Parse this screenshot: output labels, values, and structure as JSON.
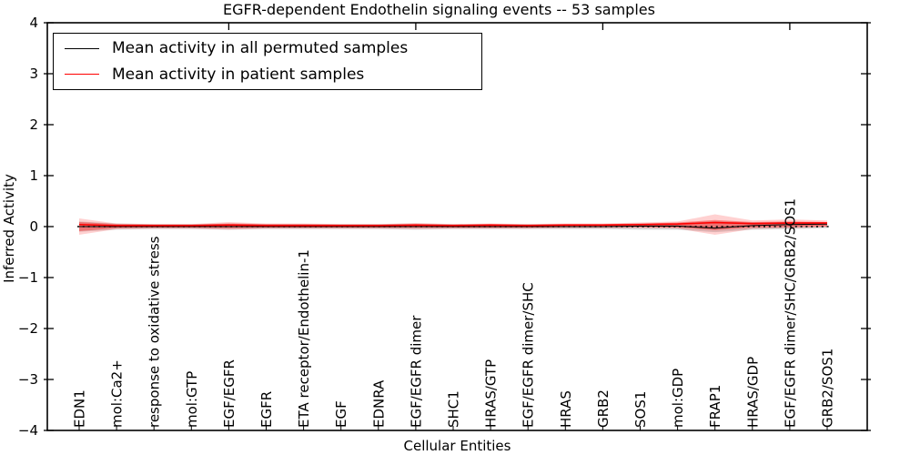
{
  "chart_data": {
    "type": "line",
    "title": "EGFR-dependent Endothelin signaling events -- 53 samples",
    "xlabel": "Cellular Entities",
    "ylabel": "Inferred Activity",
    "ylim": [
      -4,
      4
    ],
    "grid": false,
    "legend_position": "upper left",
    "yticks": [
      {
        "v": 4,
        "label": "4"
      },
      {
        "v": 3,
        "label": "3"
      },
      {
        "v": 2,
        "label": "2"
      },
      {
        "v": 1,
        "label": "1"
      },
      {
        "v": 0,
        "label": "0"
      },
      {
        "v": -1,
        "label": "−1"
      },
      {
        "v": -2,
        "label": "−2"
      },
      {
        "v": -3,
        "label": "−3"
      },
      {
        "v": -4,
        "label": "−4"
      }
    ],
    "categories": [
      "EDN1",
      "mol:Ca2+",
      "response to oxidative stress",
      "mol:GTP",
      "EGF/EGFR",
      "EGFR",
      "ETA receptor/Endothelin-1",
      "EGF",
      "EDNRA",
      "EGF/EGFR dimer",
      "SHC1",
      "HRAS/GTP",
      "EGF/EGFR dimer/SHC",
      "HRAS",
      "GRB2",
      "SOS1",
      "mol:GDP",
      "FRAP1",
      "HRAS/GDP",
      "EGF/EGFR dimer/SHC/GRB2/SOS1",
      "GRB2/SOS1"
    ],
    "legend": [
      {
        "label": "Mean activity in all permuted samples",
        "color": "#000000"
      },
      {
        "label": "Mean activity in patient samples",
        "color": "#ff0000"
      }
    ],
    "zero_line": {
      "y": 0,
      "style": "dotted",
      "color": "#000000"
    },
    "series": [
      {
        "name": "Mean activity in all permuted samples",
        "color": "#000000",
        "values": [
          0,
          0,
          0,
          0,
          0,
          0,
          0,
          0,
          0,
          0,
          0,
          0,
          0,
          0,
          0,
          0.01,
          0.01,
          -0.03,
          0.02,
          0.04,
          0.05
        ]
      },
      {
        "name": "Mean activity in patient samples",
        "color": "#ff0000",
        "values": [
          0.04,
          0.02,
          0.02,
          0.02,
          0.03,
          0.02,
          0.02,
          0.02,
          0.02,
          0.03,
          0.02,
          0.03,
          0.02,
          0.03,
          0.03,
          0.04,
          0.05,
          0.08,
          0.06,
          0.07,
          0.07
        ]
      }
    ],
    "bands": [
      {
        "name": "permuted-samples-range",
        "color": "#aaaaaa",
        "opacity": 0.45,
        "upper": [
          0.1,
          0.06,
          0.05,
          0.05,
          0.06,
          0.05,
          0.05,
          0.05,
          0.05,
          0.06,
          0.05,
          0.05,
          0.05,
          0.05,
          0.05,
          0.06,
          0.07,
          0.11,
          0.08,
          0.09,
          0.08
        ],
        "lower": [
          -0.1,
          -0.06,
          -0.05,
          -0.05,
          -0.06,
          -0.05,
          -0.05,
          -0.05,
          -0.05,
          -0.06,
          -0.05,
          -0.05,
          -0.05,
          -0.05,
          -0.05,
          -0.06,
          -0.06,
          -0.11,
          -0.06,
          -0.05,
          -0.03
        ]
      },
      {
        "name": "patient-samples-range-outer",
        "color": "#ff0000",
        "opacity": 0.18,
        "upper": [
          0.16,
          0.06,
          0.05,
          0.05,
          0.09,
          0.06,
          0.06,
          0.05,
          0.05,
          0.07,
          0.05,
          0.06,
          0.05,
          0.06,
          0.06,
          0.08,
          0.1,
          0.24,
          0.12,
          0.14,
          0.12
        ],
        "lower": [
          -0.16,
          -0.05,
          -0.04,
          -0.04,
          -0.06,
          -0.04,
          -0.04,
          -0.04,
          -0.04,
          -0.05,
          -0.04,
          -0.04,
          -0.04,
          -0.03,
          -0.03,
          -0.03,
          -0.04,
          -0.16,
          -0.05,
          -0.03,
          -0.01
        ]
      },
      {
        "name": "patient-samples-range-inner",
        "color": "#ff0000",
        "opacity": 0.35,
        "upper": [
          0.09,
          0.05,
          0.04,
          0.04,
          0.06,
          0.05,
          0.05,
          0.04,
          0.04,
          0.05,
          0.04,
          0.05,
          0.04,
          0.05,
          0.05,
          0.06,
          0.08,
          0.13,
          0.09,
          0.1,
          0.09
        ],
        "lower": [
          -0.09,
          -0.03,
          -0.02,
          -0.02,
          -0.03,
          -0.02,
          -0.02,
          -0.02,
          -0.02,
          -0.02,
          -0.02,
          -0.02,
          -0.02,
          -0.01,
          -0.01,
          -0.01,
          -0.02,
          -0.07,
          -0.02,
          -0.01,
          0.0
        ]
      }
    ],
    "colors": {
      "frame": "#000000",
      "background": "#ffffff"
    }
  }
}
